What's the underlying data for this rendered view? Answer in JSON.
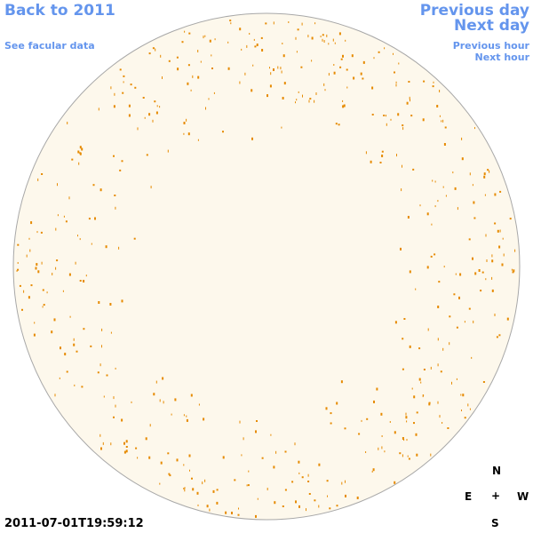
{
  "nav": {
    "back": "Back to 2011",
    "facular": "See facular data",
    "previous_day": "Previous day",
    "next_day": "Next day",
    "previous_hour": "Previous hour",
    "next_hour": "Next hour"
  },
  "timestamp": "2011-07-01T19:59:12",
  "compass": {
    "north": "N",
    "east": "E",
    "center": "+",
    "west": "W",
    "south": "S"
  }
}
